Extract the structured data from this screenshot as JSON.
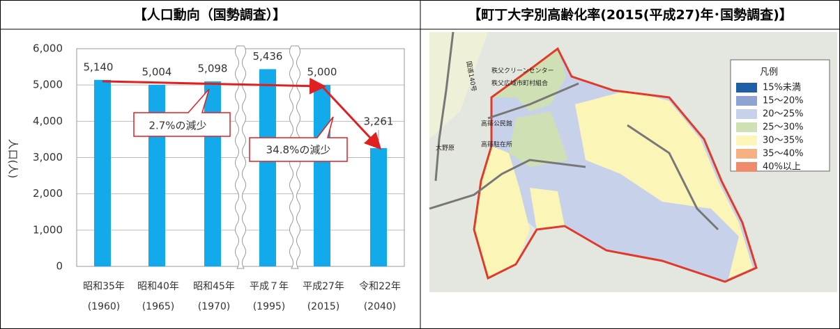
{
  "header": {
    "left": "【人口動向（国勢調査）】",
    "right": "【町丁大字別高齢化率(2015(平成27)年･国勢調査)】"
  },
  "chart_data": {
    "type": "bar",
    "y_label": "人口(人)",
    "categories": [
      "昭和35年",
      "昭和40年",
      "昭和45年",
      "平成７年",
      "平成27年",
      "令和22年"
    ],
    "category_years": [
      "(1960)",
      "(1965)",
      "(1970)",
      "(1995)",
      "(2015)",
      "(2040)"
    ],
    "values": [
      5140,
      5004,
      5098,
      5436,
      5000,
      3261
    ],
    "value_labels": [
      "5,140",
      "5,004",
      "5,098",
      "5,436",
      "5,000",
      "3,261"
    ],
    "color": "#12aaeb",
    "ylim": [
      0,
      6000
    ],
    "yticks": [
      0,
      {
        "value": 1000,
        "label": "1,000"
      },
      {
        "value": 2000,
        "label": "2,000"
      },
      {
        "value": 3000,
        "label": "3,000"
      },
      {
        "value": 4000,
        "label": "4,000"
      },
      {
        "value": 5000,
        "label": "5,000"
      },
      {
        "value": 6000,
        "label": "6,000"
      }
    ],
    "grid": true,
    "annotations": [
      "2.7%の減少",
      "34.8%の減少"
    ]
  },
  "map": {
    "legend_title": "凡例",
    "legend": [
      {
        "label": "15%未満",
        "color": "#1f5fa8"
      },
      {
        "label": "15～20%",
        "color": "#8fa3d2"
      },
      {
        "label": "20～25%",
        "color": "#c7d2ea"
      },
      {
        "label": "25～30%",
        "color": "#cfe0b4"
      },
      {
        "label": "30～35%",
        "color": "#fbf5b8"
      },
      {
        "label": "35～40%",
        "color": "#f6b183"
      },
      {
        "label": "40%以上",
        "color": "#ef8a6a"
      }
    ],
    "places": [
      "秩父クリーンセンター",
      "秩父広域市町村組合",
      "高篠公民館",
      "高篠駐在所",
      "大野原",
      "国道140号"
    ]
  }
}
